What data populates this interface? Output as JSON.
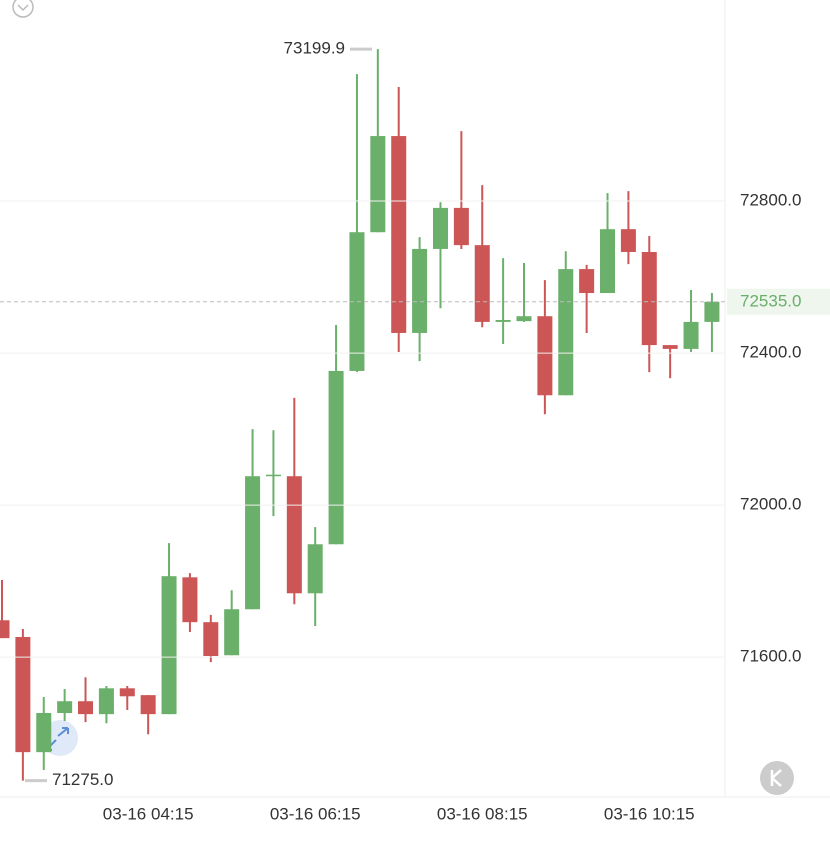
{
  "chart_data": {
    "type": "candlestick",
    "categories": [
      null,
      null,
      null,
      null,
      null,
      null,
      null,
      "03-16 04:15",
      null,
      null,
      null,
      null,
      null,
      null,
      null,
      "03-16 06:15",
      null,
      null,
      null,
      null,
      null,
      null,
      null,
      "03-16 08:15",
      null,
      null,
      null,
      null,
      null,
      null,
      null,
      "03-16 10:15",
      null,
      null,
      null
    ],
    "open": [
      71697,
      71653,
      71350,
      71453,
      71484,
      71450,
      71518,
      71500,
      71450,
      71810,
      71692,
      71605,
      71726,
      72076,
      72076,
      71768,
      71897,
      72353,
      72718,
      72971,
      72453,
      72674,
      72782,
      72684,
      72482,
      72484,
      72497,
      72289,
      72621,
      72558,
      72726,
      72666,
      72421,
      72411,
      72482
    ],
    "high": [
      71803,
      71674,
      71495,
      71516,
      71547,
      71524,
      71524,
      71500,
      71900,
      71821,
      71711,
      71776,
      72200,
      72197,
      72282,
      71942,
      72474,
      73134,
      73199.9,
      73100,
      72705,
      72797,
      72984,
      72842,
      72650,
      72637,
      72592,
      72668,
      72632,
      72821,
      72826,
      72708,
      72421,
      72566,
      72558
    ],
    "low": [
      71650,
      71275,
      71303,
      71432,
      71429,
      71426,
      71461,
      71397,
      71450,
      71666,
      71587,
      71605,
      71726,
      71971,
      71739,
      71682,
      71897,
      72350,
      72718,
      72403,
      72379,
      72518,
      72674,
      72468,
      72424,
      72482,
      72239,
      72289,
      72453,
      72558,
      72634,
      72350,
      72334,
      72403,
      72403
    ],
    "close": [
      71650,
      71350,
      71453,
      71484,
      71450,
      71518,
      71497,
      71450,
      71813,
      71692,
      71603,
      71726,
      72076,
      72080,
      71768,
      71897,
      72353,
      72718,
      72971,
      72453,
      72674,
      72782,
      72684,
      72482,
      72487,
      72497,
      72289,
      72621,
      72558,
      72726,
      72666,
      72421,
      72411,
      72482,
      72535
    ],
    "up_color": "#6aaf6a",
    "down_color": "#cc5555",
    "ylim": [
      71232,
      73329
    ],
    "yticks": [
      {
        "value": 71600,
        "label": "71600.0"
      },
      {
        "value": 72000,
        "label": "72000.0"
      },
      {
        "value": 72400,
        "label": "72400.0"
      },
      {
        "value": 72800,
        "label": "72800.0"
      }
    ],
    "grid": true,
    "max_marker": 73199.9,
    "min_marker": {
      "value": 71275,
      "label": "71275.0"
    },
    "last_price": {
      "value": 72535,
      "label": "72535.0"
    }
  }
}
